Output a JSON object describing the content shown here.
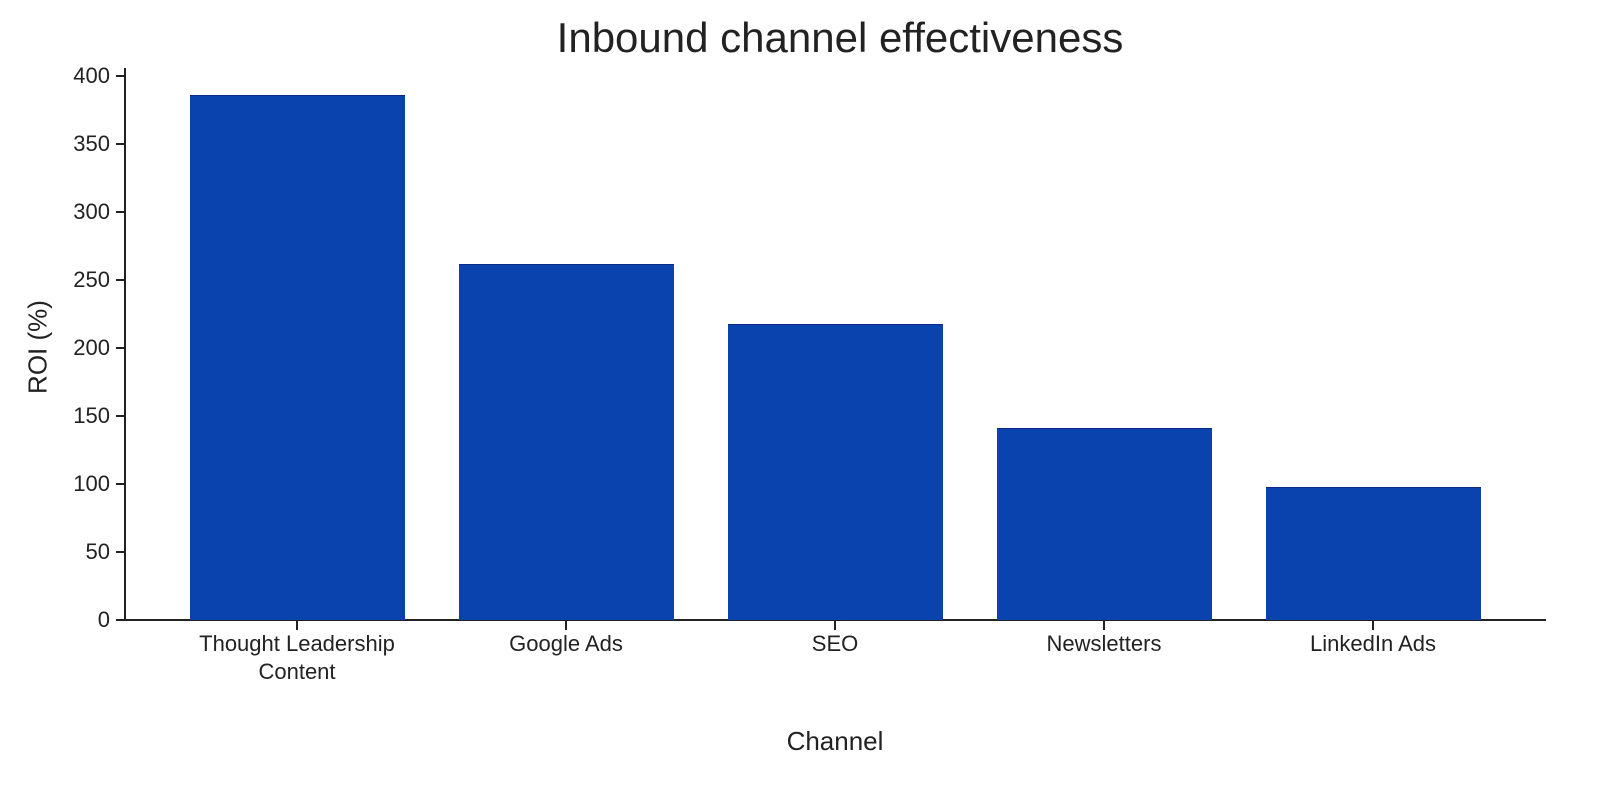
{
  "chart_data": {
    "type": "bar",
    "title": "Inbound channel effectiveness",
    "xlabel": "Channel",
    "ylabel": "ROI (%)",
    "categories": [
      "Thought Leadership\nContent",
      "Google Ads",
      "SEO",
      "Newsletters",
      "LinkedIn Ads"
    ],
    "values": [
      386,
      262,
      218,
      141,
      98
    ],
    "ylim": [
      0,
      400
    ],
    "yticks": [
      0,
      50,
      100,
      150,
      200,
      250,
      300,
      350,
      400
    ],
    "grid": false,
    "legend": null,
    "bar_color": "#0a43ae"
  }
}
